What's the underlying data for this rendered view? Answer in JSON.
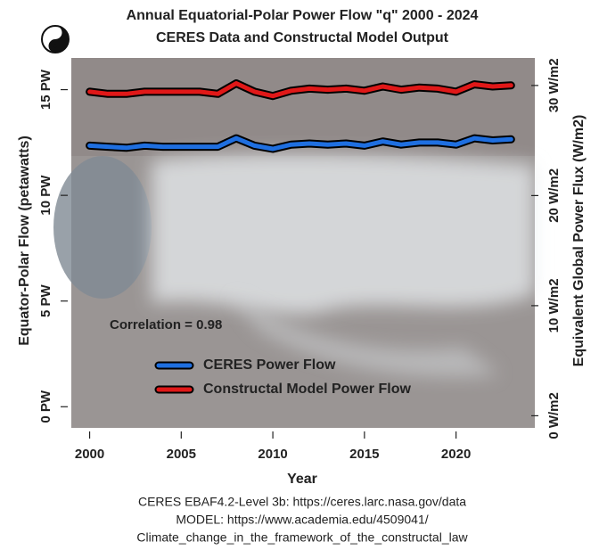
{
  "chart_data": {
    "type": "line",
    "title": "Annual Equatorial-Polar Power Flow \"q\"  2000 - 2024",
    "subtitle": "CERES Data and Constructal Model Output",
    "x_label": "Year",
    "y_label": "Equator-Polar Flow (petawatts)",
    "y2_label": "Equivalent Global Power Flux (W/m2)",
    "annotation": "Correlation = 0.98",
    "caption": [
      "CERES EBAF4.2-Level 3b: https://ceres.larc.nasa.gov/data",
      "MODEL: https://www.academia.edu/4509041/",
      "Climate_change_in_the_framework_of_the_constructal_law"
    ],
    "x": [
      2000,
      2001,
      2002,
      2003,
      2004,
      2005,
      2006,
      2007,
      2008,
      2009,
      2010,
      2011,
      2012,
      2013,
      2014,
      2015,
      2016,
      2017,
      2018,
      2019,
      2020,
      2021,
      2022,
      2023
    ],
    "series": [
      {
        "name": "CERES Power Flow",
        "color": "#1f6fe0",
        "values": [
          12.35,
          12.3,
          12.25,
          12.35,
          12.3,
          12.3,
          12.3,
          12.3,
          12.7,
          12.35,
          12.2,
          12.4,
          12.45,
          12.4,
          12.45,
          12.35,
          12.55,
          12.4,
          12.5,
          12.5,
          12.4,
          12.7,
          12.6,
          12.65
        ]
      },
      {
        "name": "Constructal Model Power Flow",
        "color": "#e01818",
        "values": [
          14.9,
          14.8,
          14.8,
          14.9,
          14.9,
          14.9,
          14.9,
          14.8,
          15.3,
          14.9,
          14.7,
          14.95,
          15.05,
          15.0,
          15.05,
          14.95,
          15.15,
          15.0,
          15.1,
          15.05,
          14.9,
          15.25,
          15.15,
          15.2
        ]
      }
    ],
    "xlim": [
      1999,
      2024.3
    ],
    "xticks": [
      2000,
      2005,
      2010,
      2015,
      2020
    ],
    "ylim": [
      -1,
      16.5
    ],
    "yticks": [
      {
        "value": 0,
        "label": "0 PW"
      },
      {
        "value": 5,
        "label": "5 PW"
      },
      {
        "value": 10,
        "label": "10 PW"
      },
      {
        "value": 15,
        "label": "15 PW"
      }
    ],
    "y2lim": [
      -1.1,
      32.5
    ],
    "y2ticks": [
      {
        "value": 0,
        "label": "0 W/m2"
      },
      {
        "value": 10,
        "label": "10 W/m2"
      },
      {
        "value": 20,
        "label": "20 W/m2"
      },
      {
        "value": 30,
        "label": "30 W/m2"
      }
    ],
    "legend": "bottom-left"
  }
}
